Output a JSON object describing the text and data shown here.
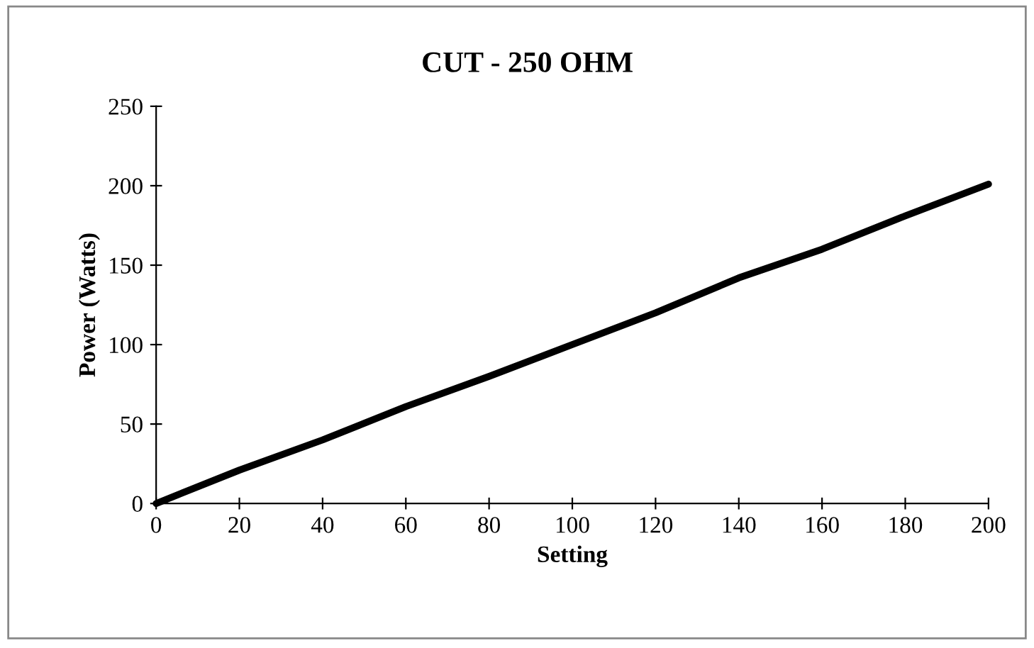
{
  "chart_data": {
    "type": "line",
    "title": "CUT - 250 OHM",
    "xlabel": "Setting",
    "ylabel": "Power (Watts)",
    "x": [
      0,
      20,
      40,
      60,
      80,
      100,
      120,
      140,
      160,
      180,
      200
    ],
    "series": [
      {
        "color": "#000000",
        "values": [
          0,
          21,
          40,
          61,
          80,
          100,
          120,
          142,
          160,
          181,
          201
        ]
      }
    ],
    "xlim": [
      0,
      200
    ],
    "xticks": [
      0,
      20,
      40,
      60,
      80,
      100,
      120,
      140,
      160,
      180,
      200
    ],
    "ylim": [
      0,
      250
    ],
    "yticks": [
      0,
      50,
      100,
      150,
      200,
      250
    ],
    "grid": false,
    "legend": false,
    "marker": "none",
    "line_style": "solid"
  }
}
